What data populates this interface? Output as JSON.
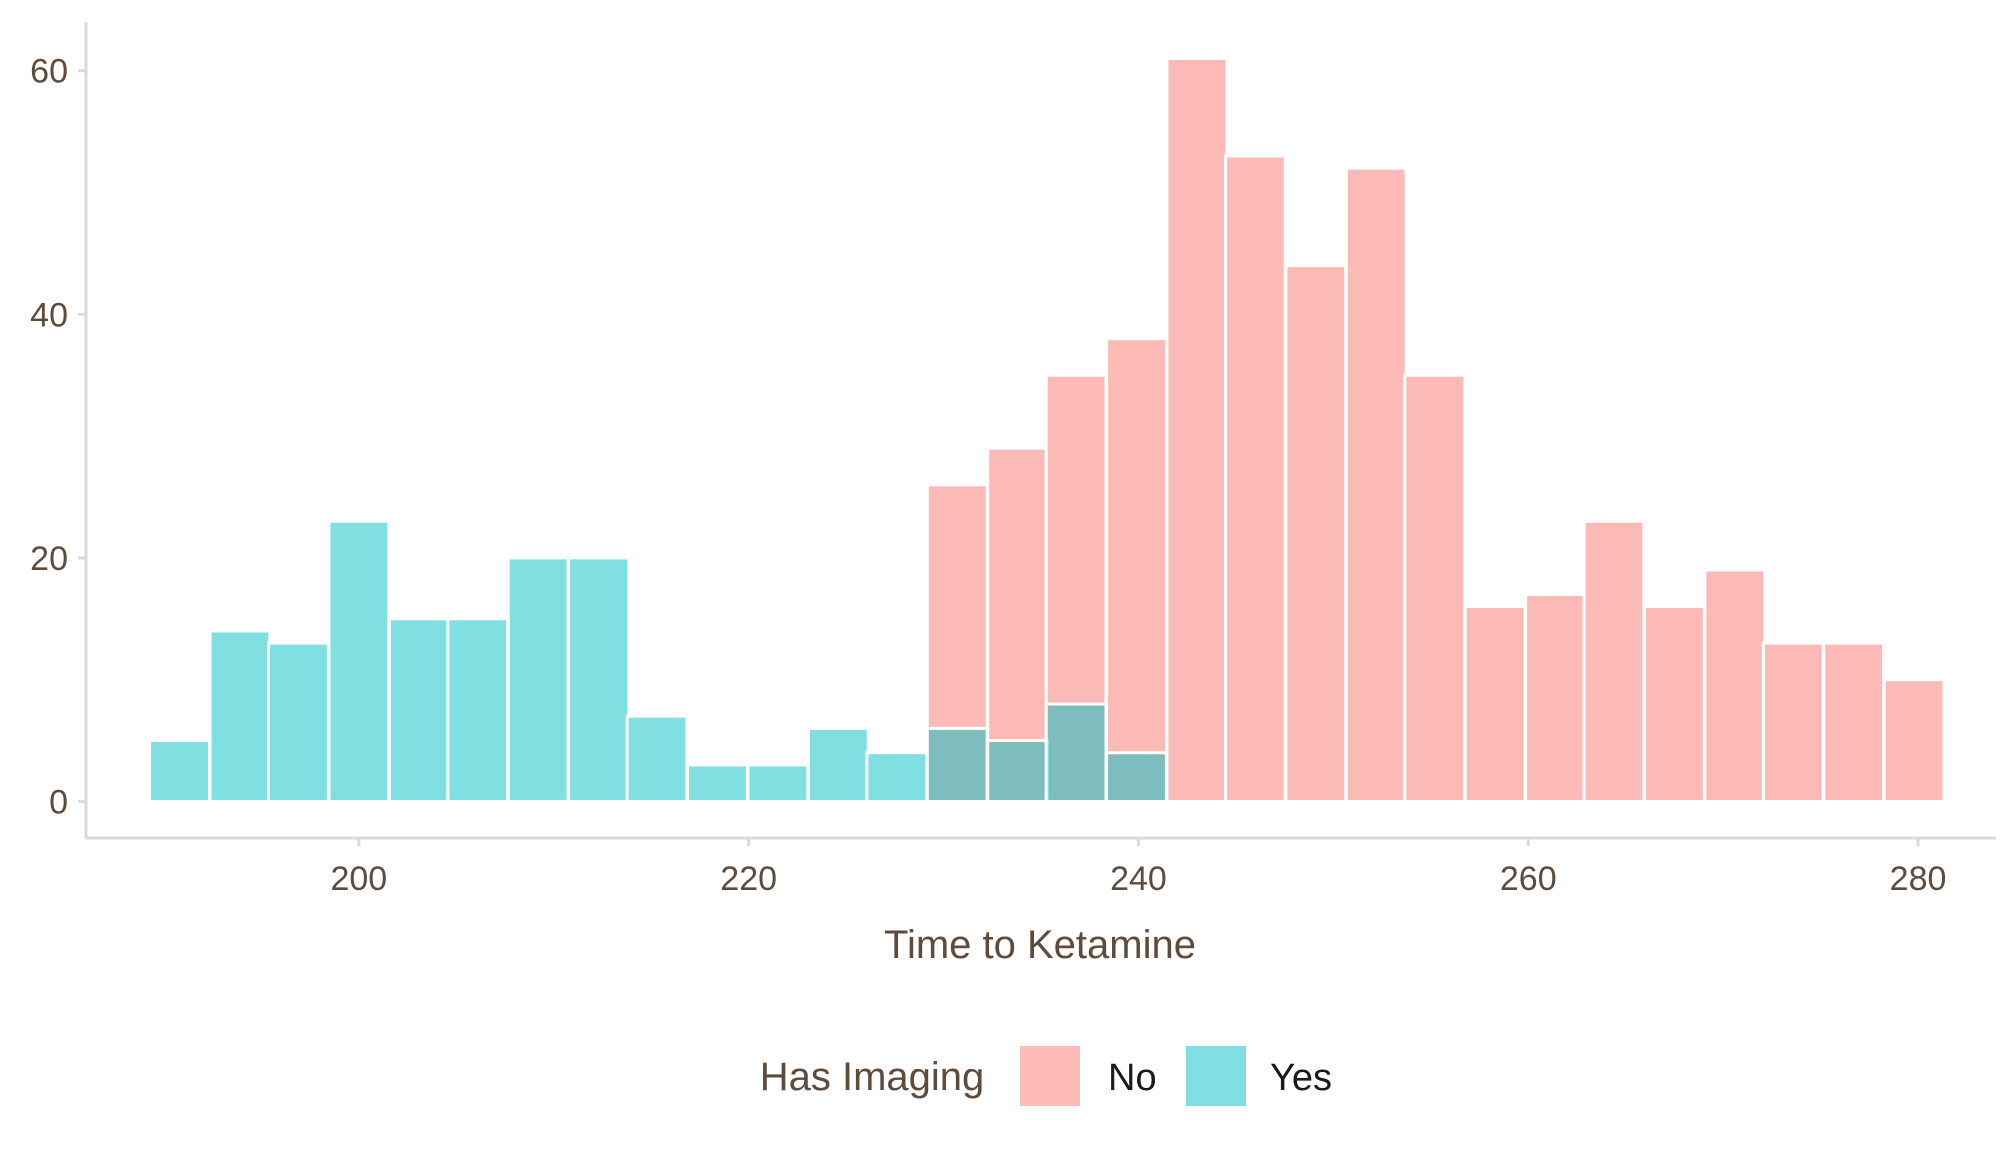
{
  "chart_data": {
    "type": "bar",
    "subtype": "overlapping-histogram",
    "title": "",
    "xlabel": "Time to Ketamine",
    "ylabel": "",
    "xlim": [
      186,
      284
    ],
    "ylim": [
      -3,
      64
    ],
    "x_ticks": [
      200,
      220,
      240,
      260,
      280
    ],
    "y_ticks": [
      0,
      20,
      40,
      60
    ],
    "bin_width": 3.07,
    "bin_centers": [
      190.8,
      193.9,
      196.9,
      200.0,
      203.1,
      206.1,
      209.2,
      212.3,
      215.3,
      218.4,
      221.5,
      224.6,
      227.6,
      230.7,
      233.8,
      236.8,
      239.9,
      243.0,
      246.0,
      249.1,
      252.2,
      255.2,
      258.3,
      261.4,
      264.4,
      267.5,
      270.6,
      273.6,
      276.7,
      279.8
    ],
    "series": [
      {
        "name": "No",
        "color": "#F8766D",
        "values": [
          0,
          0,
          0,
          0,
          0,
          0,
          0,
          0,
          0,
          0,
          0,
          0,
          0,
          26,
          29,
          35,
          38,
          61,
          53,
          44,
          52,
          35,
          16,
          17,
          23,
          16,
          19,
          13,
          13,
          10
        ]
      },
      {
        "name": "Yes",
        "color": "#00BFC4",
        "values": [
          5,
          14,
          13,
          23,
          15,
          15,
          20,
          20,
          7,
          3,
          3,
          6,
          4,
          6,
          5,
          8,
          4,
          0,
          0,
          0,
          0,
          0,
          0,
          0,
          0,
          0,
          0,
          0,
          0,
          0
        ]
      }
    ],
    "bar_opacity": 0.5,
    "grid": false,
    "legend": {
      "title": "Has Imaging",
      "position": "bottom",
      "entries": [
        "No",
        "Yes"
      ]
    }
  }
}
